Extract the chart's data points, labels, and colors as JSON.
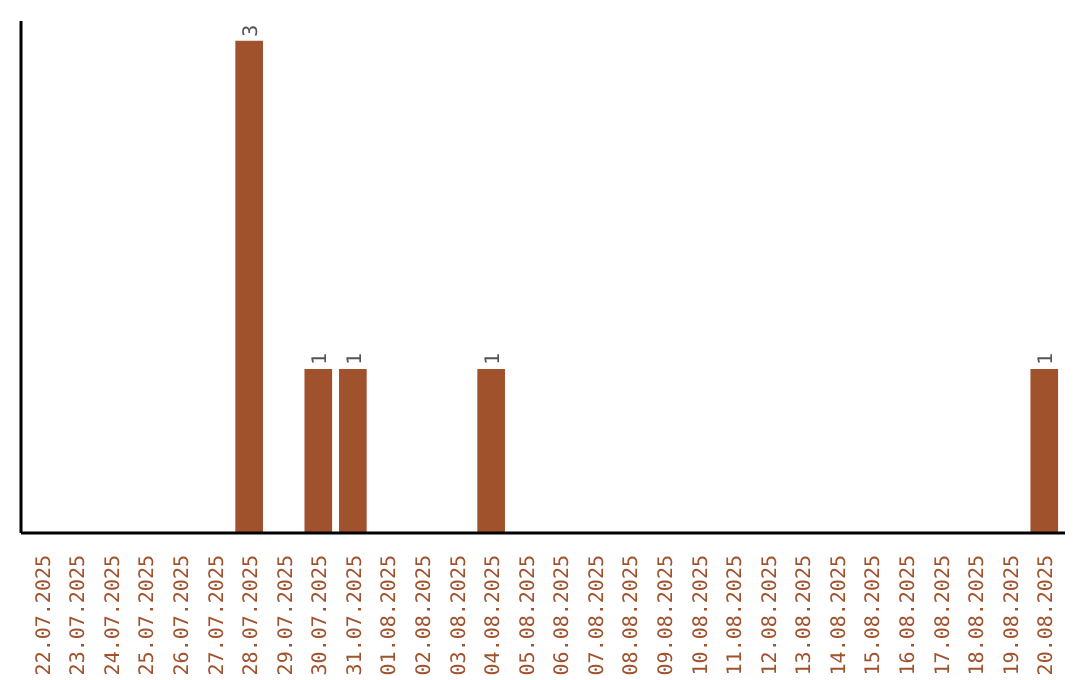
{
  "chart_data": {
    "type": "bar",
    "categories": [
      "22.07.2025",
      "23.07.2025",
      "24.07.2025",
      "25.07.2025",
      "26.07.2025",
      "27.07.2025",
      "28.07.2025",
      "29.07.2025",
      "30.07.2025",
      "31.07.2025",
      "01.08.2025",
      "02.08.2025",
      "03.08.2025",
      "04.08.2025",
      "05.08.2025",
      "06.08.2025",
      "07.08.2025",
      "08.08.2025",
      "09.08.2025",
      "10.08.2025",
      "11.08.2025",
      "12.08.2025",
      "13.08.2025",
      "14.08.2025",
      "15.08.2025",
      "16.08.2025",
      "17.08.2025",
      "18.08.2025",
      "19.08.2025",
      "20.08.2025"
    ],
    "values": [
      0,
      0,
      0,
      0,
      0,
      0,
      3,
      0,
      1,
      1,
      0,
      0,
      0,
      1,
      0,
      0,
      0,
      0,
      0,
      0,
      0,
      0,
      0,
      0,
      0,
      0,
      0,
      0,
      0,
      1
    ],
    "value_labels": [
      null,
      null,
      null,
      null,
      null,
      null,
      "3",
      null,
      "1",
      "1",
      null,
      null,
      null,
      "1",
      null,
      null,
      null,
      null,
      null,
      null,
      null,
      null,
      null,
      null,
      null,
      null,
      null,
      null,
      null,
      "1"
    ],
    "color": "#a0522d",
    "tick_labels": "x",
    "grid": false
  }
}
